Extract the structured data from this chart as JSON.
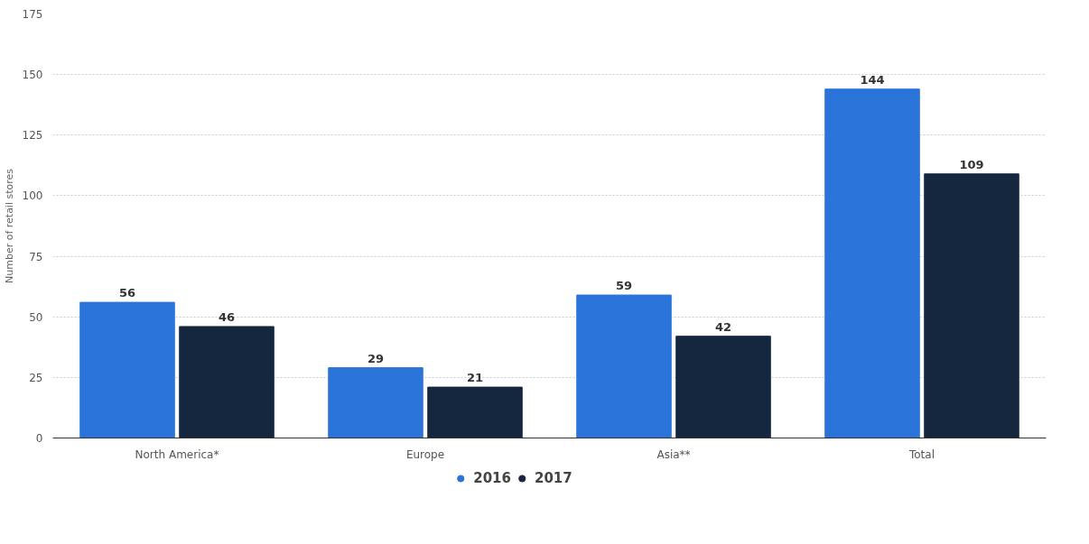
{
  "chart_data": {
    "type": "bar",
    "ylabel": "Number of retail stores",
    "categories": [
      "North America*",
      "Europe",
      "Asia**",
      "Total"
    ],
    "series": [
      {
        "name": "2016",
        "color": "#2a74d9",
        "values": [
          56,
          29,
          59,
          144
        ]
      },
      {
        "name": "2017",
        "color": "#14273f",
        "values": [
          46,
          21,
          42,
          109
        ]
      }
    ],
    "ylim": [
      0,
      175
    ],
    "yticks": [
      0,
      25,
      50,
      75,
      100,
      125,
      150,
      175
    ],
    "grid": "y",
    "legend": "bottom",
    "data_labels": true
  }
}
